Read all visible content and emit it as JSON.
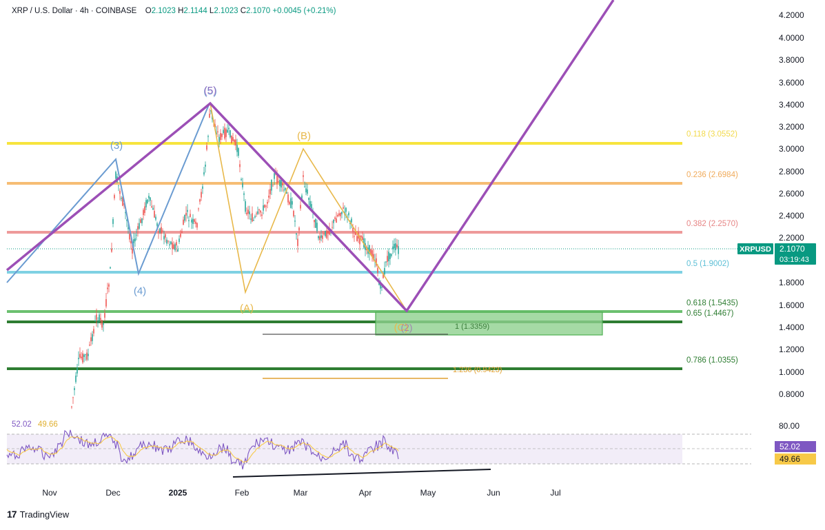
{
  "header": {
    "symbol": "XRP / U.S. Dollar",
    "interval": "4h",
    "exchange": "COINBASE",
    "o_label": "O",
    "o_value": "2.1023",
    "h_label": "H",
    "h_value": "2.1144",
    "l_label": "L",
    "l_value": "2.1023",
    "c_label": "C",
    "c_value": "2.1070",
    "change": "+0.0045 (+0.21%)"
  },
  "brand": {
    "logo": "17",
    "name": "TradingView"
  },
  "price_axis": {
    "ticks": [
      "4.2000",
      "4.0000",
      "3.8000",
      "3.6000",
      "3.4000",
      "3.2000",
      "3.0000",
      "2.8000",
      "2.6000",
      "2.4000",
      "2.2000",
      "1.8000",
      "1.6000",
      "1.4000",
      "1.2000",
      "1.0000",
      "0.8000"
    ]
  },
  "last_price": {
    "symbol": "XRPUSD",
    "price": "2.1070",
    "countdown": "03:19:43",
    "color": "#089981"
  },
  "time_axis": {
    "ticks": [
      "Nov",
      "Dec",
      "2025",
      "Feb",
      "Mar",
      "Apr",
      "May",
      "Jun",
      "Jul"
    ]
  },
  "fib_levels": [
    {
      "label": "0.118 (3.0552)",
      "color": "#f7e43d"
    },
    {
      "label": "0.236 (2.6984)",
      "color": "#f6bd74"
    },
    {
      "label": "0.382 (2.2570)",
      "color": "#ee9a9a"
    },
    {
      "label": "0.5 (1.9002)",
      "color": "#7fd1e3"
    },
    {
      "label": "0.618 (1.5435)",
      "color": "#64b764"
    },
    {
      "label": "0.65 (1.4467)",
      "color": "#2e8b3e"
    },
    {
      "label": "0.786 (1.0355)",
      "color": "#2e8b3e"
    }
  ],
  "projection_labels": {
    "ext1": "1 (1.3359)",
    "ext2": "1.236 (0.9423)"
  },
  "wave_labels": {
    "w3": "(3)",
    "w4": "(4)",
    "w5": "(5)",
    "wA": "(A)",
    "wB": "(B)",
    "wC": "(C)",
    "w2": "(2)"
  },
  "rsi": {
    "value": "52.02",
    "ma": "49.66",
    "axis_top": "80.00",
    "badge_value": "52.02",
    "badge_ma": "49.66",
    "line_color": "#7e57c2",
    "ma_color": "#f7c948"
  },
  "colors": {
    "wave_purple": "#9c4fb6",
    "wave_blue": "#6a9bd1",
    "wave_yellow": "#e8b84a",
    "up": "#26a69a",
    "down": "#ef5350"
  }
}
